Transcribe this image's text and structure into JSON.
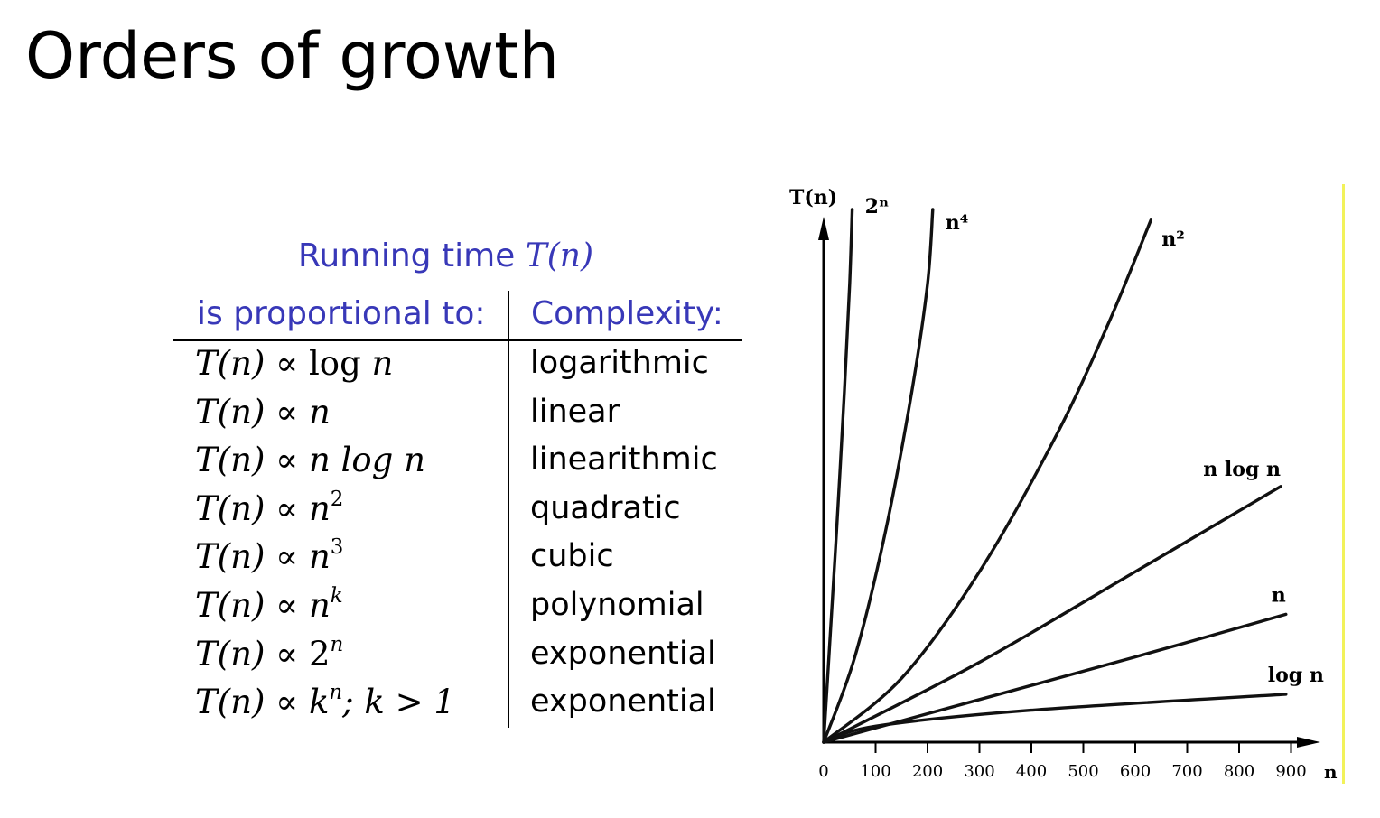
{
  "slide": {
    "title": "Orders of growth"
  },
  "table": {
    "caption_text": "Running time ",
    "caption_math": "T(n)",
    "col1_header": "is proportional to:",
    "col2_header": "Complexity:",
    "rows": [
      {
        "lhs": "T(n) ∝ ",
        "rhs_pre": "log ",
        "rhs_var": "n",
        "sup": "",
        "tail": "",
        "complexity": "logarithmic"
      },
      {
        "lhs": "T(n) ∝ ",
        "rhs_pre": "",
        "rhs_var": "n",
        "sup": "",
        "tail": "",
        "complexity": "linear"
      },
      {
        "lhs": "T(n) ∝ ",
        "rhs_pre": "",
        "rhs_var": "n log n",
        "sup": "",
        "tail": "",
        "complexity": "linearithmic"
      },
      {
        "lhs": "T(n) ∝ ",
        "rhs_pre": "",
        "rhs_var": "n",
        "sup": "2",
        "tail": "",
        "complexity": "quadratic"
      },
      {
        "lhs": "T(n) ∝ ",
        "rhs_pre": "",
        "rhs_var": "n",
        "sup": "3",
        "tail": "",
        "complexity": "cubic"
      },
      {
        "lhs": "T(n) ∝ ",
        "rhs_pre": "",
        "rhs_var": "n",
        "sup": "k",
        "tail": "",
        "complexity": "polynomial"
      },
      {
        "lhs": "T(n) ∝ ",
        "rhs_pre": "2",
        "rhs_var": "",
        "sup": "n",
        "tail": "",
        "complexity": "exponential"
      },
      {
        "lhs": "T(n) ∝ ",
        "rhs_pre": "",
        "rhs_var": "k",
        "sup": "n",
        "tail": "; k > 1",
        "complexity": "exponential"
      }
    ]
  },
  "chart_data": {
    "type": "line",
    "title": "",
    "ylabel": "T(n)",
    "xlabel": "n",
    "x_ticks": [
      0,
      100,
      200,
      300,
      400,
      500,
      600,
      700,
      800,
      900
    ],
    "xlim": [
      0,
      900
    ],
    "grid": false,
    "y_axis_tick_labels": false,
    "series": [
      {
        "name": "2ⁿ",
        "x": [
          0,
          10,
          25,
          40,
          50,
          55
        ],
        "y_frac": [
          0,
          0.16,
          0.4,
          0.66,
          0.86,
          1.0
        ]
      },
      {
        "name": "n⁴",
        "x": [
          0,
          60,
          120,
          170,
          200,
          210
        ],
        "y_frac": [
          0,
          0.16,
          0.4,
          0.66,
          0.86,
          1.0
        ]
      },
      {
        "name": "n²",
        "x": [
          0,
          150,
          300,
          450,
          550,
          630
        ],
        "y_frac": [
          0,
          0.12,
          0.32,
          0.58,
          0.79,
          0.98
        ]
      },
      {
        "name": "n log n",
        "x": [
          0,
          300,
          600,
          880
        ],
        "y_frac": [
          0,
          0.15,
          0.32,
          0.48
        ]
      },
      {
        "name": "n",
        "x": [
          0,
          300,
          600,
          890
        ],
        "y_frac": [
          0,
          0.08,
          0.16,
          0.24
        ]
      },
      {
        "name": "log n",
        "x": [
          0,
          100,
          400,
          890
        ],
        "y_frac": [
          0,
          0.03,
          0.06,
          0.09
        ]
      }
    ]
  }
}
